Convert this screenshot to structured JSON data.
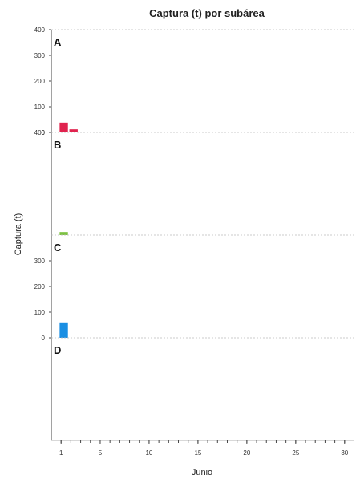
{
  "chart_data": {
    "type": "bar",
    "title": "Captura (t) por subárea",
    "xlabel": "Junio",
    "ylabel": "Captura (t)",
    "xlim": [
      0,
      31
    ],
    "ylim": [
      0,
      400
    ],
    "x_ticks": [
      1,
      5,
      10,
      15,
      20,
      25,
      30
    ],
    "y_ticks": [
      0,
      100,
      200,
      300,
      400
    ],
    "panels": [
      {
        "name": "A",
        "color": "#e0234e",
        "y_tick_labels": [
          "0",
          "100",
          "200",
          "300",
          "400"
        ],
        "bars": [
          {
            "x": 1,
            "value": 38
          },
          {
            "x": 2,
            "value": 12
          }
        ]
      },
      {
        "name": "B",
        "color": "#7dc242",
        "y_tick_labels": [
          "",
          "",
          "",
          "",
          "400"
        ],
        "bars": [
          {
            "x": 1,
            "value": 12
          }
        ]
      },
      {
        "name": "C",
        "color": "#1a8fe3",
        "y_tick_labels": [
          "0",
          "100",
          "200",
          "300",
          ""
        ],
        "bars": [
          {
            "x": 1,
            "value": 60
          }
        ]
      },
      {
        "name": "D",
        "color": "#1a8fe3",
        "y_tick_labels": [
          "",
          "",
          "",
          "",
          ""
        ],
        "bars": []
      }
    ]
  }
}
